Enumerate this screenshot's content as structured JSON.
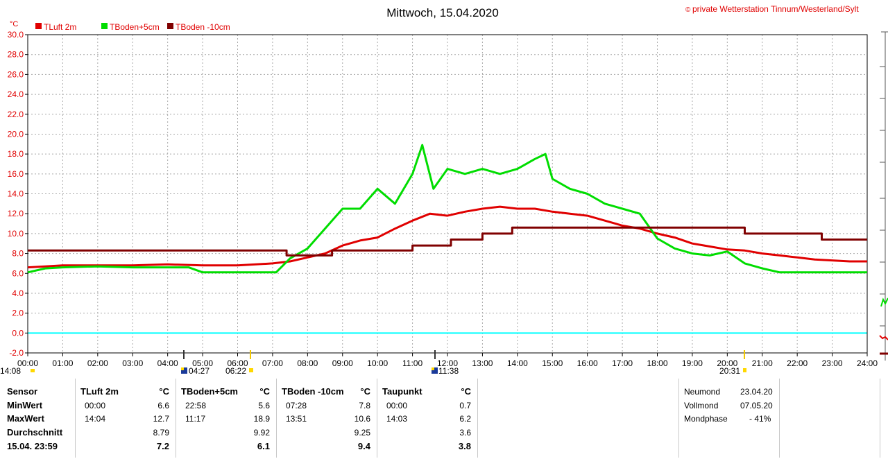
{
  "header": {
    "title": "Mittwoch, 15.04.2020",
    "credit_symbol": "©",
    "credit": "private Wetterstation Tinnum/Westerland/Sylt",
    "unit": "°C"
  },
  "legend": [
    {
      "label": "TLuft 2m",
      "color": "#e00000"
    },
    {
      "label": "TBoden+5cm",
      "color": "#00dd00"
    },
    {
      "label": "TBoden -10cm",
      "color": "#800000"
    }
  ],
  "markers": {
    "sunrise": "04:27",
    "moonset": "06:22",
    "noon": "11:38",
    "sunset": "20:31",
    "left": "14:08"
  },
  "chart_data": {
    "type": "line",
    "title": "Mittwoch, 15.04.2020",
    "ylabel": "°C",
    "ylim": [
      -2.0,
      30.0
    ],
    "xlim": [
      0,
      24
    ],
    "grid": true,
    "legend_position": "top-left",
    "x_ticks": [
      "00:00",
      "01:00",
      "02:00",
      "03:00",
      "04:00",
      "05:00",
      "06:00",
      "07:00",
      "08:00",
      "09:00",
      "10:00",
      "11:00",
      "12:00",
      "13:00",
      "14:00",
      "15:00",
      "16:00",
      "17:00",
      "18:00",
      "19:00",
      "20:00",
      "21:00",
      "22:00",
      "23:00",
      "24:00"
    ],
    "y_ticks": [
      "30.0",
      "28.0",
      "26.0",
      "24.0",
      "22.0",
      "20.0",
      "18.0",
      "16.0",
      "14.0",
      "12.0",
      "10.0",
      "8.0",
      "6.0",
      "4.0",
      "2.0",
      "0.0",
      "-2.0"
    ],
    "zero_line_color": "#00ffff",
    "series": [
      {
        "name": "TLuft 2m",
        "color": "#e00000",
        "x": [
          0,
          0.5,
          1,
          2,
          3,
          4,
          5,
          6,
          7,
          7.5,
          8,
          8.5,
          9,
          9.5,
          10,
          10.5,
          11,
          11.5,
          12,
          12.5,
          13,
          13.5,
          14,
          14.5,
          15,
          15.5,
          16,
          16.5,
          17,
          17.5,
          18,
          18.5,
          19,
          19.5,
          20,
          20.5,
          21,
          21.5,
          22,
          22.5,
          23,
          23.5,
          24
        ],
        "y": [
          6.6,
          6.7,
          6.8,
          6.8,
          6.8,
          6.9,
          6.8,
          6.8,
          7.0,
          7.2,
          7.6,
          8.0,
          8.8,
          9.3,
          9.6,
          10.5,
          11.3,
          12.0,
          11.8,
          12.2,
          12.5,
          12.7,
          12.5,
          12.5,
          12.2,
          12.0,
          11.8,
          11.3,
          10.8,
          10.5,
          10.0,
          9.6,
          9.0,
          8.7,
          8.4,
          8.3,
          8.0,
          7.8,
          7.6,
          7.4,
          7.3,
          7.2,
          7.2
        ]
      },
      {
        "name": "TBoden+5cm",
        "color": "#00dd00",
        "x": [
          0,
          0.5,
          1,
          2,
          3,
          4,
          4.6,
          5,
          6,
          7.1,
          7.5,
          8,
          8.5,
          9,
          9.5,
          10,
          10.5,
          11,
          11.28,
          11.6,
          12,
          12.5,
          13,
          13.5,
          14,
          14.5,
          14.8,
          15,
          15.5,
          16,
          16.5,
          17,
          17.5,
          18,
          18.5,
          19,
          19.5,
          20,
          20.5,
          21,
          21.5,
          22,
          23,
          24
        ],
        "y": [
          6.1,
          6.5,
          6.6,
          6.7,
          6.6,
          6.6,
          6.6,
          6.1,
          6.1,
          6.1,
          7.5,
          8.5,
          10.5,
          12.5,
          12.5,
          14.5,
          13.0,
          16.0,
          18.9,
          14.5,
          16.5,
          16.0,
          16.5,
          16.0,
          16.5,
          17.5,
          18.0,
          15.5,
          14.5,
          14.0,
          13.0,
          12.5,
          12.0,
          9.5,
          8.5,
          8.0,
          7.8,
          8.2,
          7.0,
          6.5,
          6.1,
          6.1,
          6.1,
          6.1
        ]
      },
      {
        "name": "TBoden -10cm",
        "color": "#800000",
        "x": [
          0,
          7.4,
          7.4,
          8.7,
          8.7,
          11.0,
          11.0,
          12.1,
          12.1,
          13.0,
          13.0,
          13.85,
          13.85,
          20.5,
          20.5,
          22.7,
          22.7,
          24
        ],
        "y": [
          8.3,
          8.3,
          7.8,
          7.8,
          8.3,
          8.3,
          8.8,
          8.8,
          9.4,
          9.4,
          10.0,
          10.0,
          10.6,
          10.6,
          10.0,
          10.0,
          9.4,
          9.4
        ]
      }
    ]
  },
  "table": {
    "columns": [
      {
        "title": "Sensor",
        "rows": [
          "MinWert",
          "MaxWert",
          "Durchschnitt",
          "15.04. 23:59"
        ]
      },
      {
        "title": "TLuft 2m",
        "unit": "°C",
        "times": [
          "00:00",
          "14:04",
          "",
          ""
        ],
        "values": [
          "6.6",
          "12.7",
          "8.79",
          "7.2"
        ]
      },
      {
        "title": "TBoden+5cm",
        "unit": "°C",
        "times": [
          "22:58",
          "11:17",
          "",
          ""
        ],
        "values": [
          "5.6",
          "18.9",
          "9.92",
          "6.1"
        ]
      },
      {
        "title": "TBoden -10cm",
        "unit": "°C",
        "times": [
          "07:28",
          "13:51",
          "",
          ""
        ],
        "values": [
          "7.8",
          "10.6",
          "9.25",
          "9.4"
        ]
      },
      {
        "title": "Taupunkt",
        "unit": "°C",
        "times": [
          "00:00",
          "14:03",
          "",
          ""
        ],
        "values": [
          "0.7",
          "6.2",
          "3.6",
          "3.8"
        ]
      }
    ],
    "moon": [
      {
        "label": "Neumond",
        "value": "23.04.20"
      },
      {
        "label": "Vollmond",
        "value": "07.05.20"
      },
      {
        "label": "Mondphase",
        "value": "- 41%"
      }
    ]
  }
}
